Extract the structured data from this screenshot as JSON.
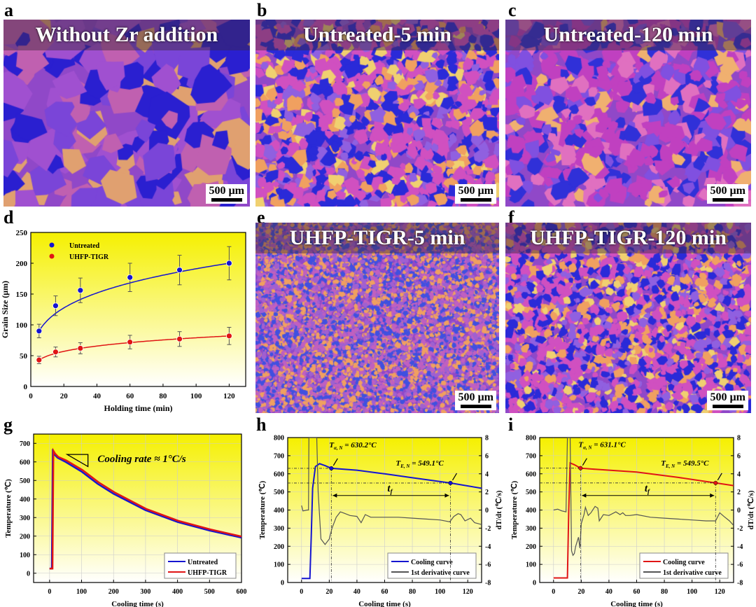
{
  "panels": {
    "a": {
      "label": "a",
      "title": "Without Zr addition",
      "scale": "500 µm"
    },
    "b": {
      "label": "b",
      "title": "Untreated-5 min",
      "scale": "500 µm"
    },
    "c": {
      "label": "c",
      "title": "Untreated-120 min",
      "scale": "500 µm"
    },
    "d": {
      "label": "d"
    },
    "e": {
      "label": "e",
      "title": "UHFP-TIGR-5 min",
      "scale": "500 µm"
    },
    "f": {
      "label": "f",
      "title": "UHFP-TIGR-120 min",
      "scale": "500 µm"
    },
    "g": {
      "label": "g"
    },
    "h": {
      "label": "h"
    },
    "i": {
      "label": "i"
    }
  },
  "colors": {
    "untreated": "#1515d0",
    "uhfp": "#e01515",
    "derivative": "#555555",
    "plot_bg_top": "#f5f000",
    "plot_bg_bottom": "#ffffff"
  },
  "chart_data": [
    {
      "id": "d",
      "type": "scatter",
      "xlabel": "Holding time (min)",
      "ylabel": "Grain Size (μm)",
      "xlim": [
        0,
        130
      ],
      "ylim": [
        0,
        250
      ],
      "xticks": [
        "0",
        "20",
        "40",
        "60",
        "80",
        "100",
        "120"
      ],
      "yticks": [
        "0",
        "50",
        "100",
        "150",
        "200",
        "250"
      ],
      "legend_position": "top-left",
      "series": [
        {
          "name": "Untreated",
          "color": "#1515d0",
          "x": [
            5,
            15,
            30,
            60,
            90,
            120
          ],
          "y": [
            90,
            131,
            156,
            177,
            189,
            200
          ],
          "err": [
            11,
            16,
            20,
            23,
            24,
            27
          ]
        },
        {
          "name": "UHFP-TIGR",
          "color": "#e01515",
          "x": [
            5,
            15,
            30,
            60,
            90,
            120
          ],
          "y": [
            43,
            56,
            62,
            72,
            77,
            82
          ],
          "err": [
            6,
            8,
            9,
            11,
            12,
            14
          ]
        }
      ]
    },
    {
      "id": "g",
      "type": "line",
      "xlabel": "Cooling time (s)",
      "ylabel": "Temperature (℃)",
      "xlim": [
        -50,
        600
      ],
      "ylim": [
        -50,
        750
      ],
      "xticks": [
        "0",
        "100",
        "200",
        "300",
        "400",
        "500",
        "600"
      ],
      "yticks": [
        "0",
        "100",
        "200",
        "300",
        "400",
        "500",
        "600",
        "700"
      ],
      "annotation": "Cooling rate ≈ 1°C/s",
      "legend_position": "bottom-right",
      "series": [
        {
          "name": "Untreated",
          "color": "#1515d0",
          "x": [
            0,
            7,
            10,
            15,
            25,
            50,
            100,
            150,
            200,
            300,
            400,
            500,
            600
          ],
          "y": [
            25,
            25,
            655,
            640,
            622,
            600,
            548,
            482,
            428,
            340,
            276,
            230,
            192
          ]
        },
        {
          "name": "UHFP-TIGR",
          "color": "#e01515",
          "x": [
            0,
            9,
            12,
            17,
            27,
            52,
            103,
            153,
            203,
            303,
            403,
            503,
            600
          ],
          "y": [
            25,
            25,
            660,
            645,
            627,
            608,
            556,
            490,
            436,
            346,
            282,
            236,
            198
          ]
        }
      ]
    },
    {
      "id": "h",
      "type": "line",
      "xlabel": "Cooling time (s)",
      "ylabel": "Temperature (℃)",
      "y2label": "dT/dt (℃/s)",
      "xlim": [
        -10,
        130
      ],
      "ylim": [
        0,
        800
      ],
      "y2lim": [
        -8,
        8
      ],
      "xticks": [
        "0",
        "20",
        "40",
        "60",
        "80",
        "100",
        "120"
      ],
      "yticks": [
        "0",
        "100",
        "200",
        "300",
        "400",
        "500",
        "600",
        "700",
        "800"
      ],
      "y2ticks": [
        "-8",
        "-6",
        "-4",
        "-2",
        "0",
        "2",
        "4",
        "6",
        "8"
      ],
      "legend_position": "bottom-right",
      "markers": {
        "nucleation": {
          "symbol": "T",
          "sub": "α, N",
          "text": " = 630.2°C",
          "x": 21.5,
          "y": 630.2
        },
        "eutectic": {
          "symbol": "T",
          "sub": "E, N",
          "text": " = 549.1°C",
          "x": 107.5,
          "y": 549.1
        },
        "interval": {
          "symbol": "t",
          "sub": "f"
        }
      },
      "series": [
        {
          "name": "Cooling curve",
          "color": "#1515d0",
          "axis": "left",
          "x": [
            0,
            6,
            7,
            8,
            10,
            13,
            17,
            21.5,
            40,
            60,
            80,
            107.5,
            130
          ],
          "y": [
            22,
            22,
            250,
            520,
            640,
            656,
            645,
            630.2,
            620,
            600,
            578,
            549.1,
            520
          ]
        },
        {
          "name": "1st derivative curve",
          "color": "#555555",
          "axis": "right",
          "x": [
            0,
            1,
            4,
            5,
            5.3,
            11,
            12,
            14,
            17,
            20,
            22,
            25,
            28,
            30,
            35,
            40,
            43,
            46,
            50,
            60,
            70,
            80,
            90,
            100,
            107,
            110,
            113,
            115,
            118,
            122,
            125,
            130
          ],
          "y": [
            0.5,
            -0.1,
            0,
            0,
            8,
            8,
            2,
            -3.2,
            -3.8,
            -3.2,
            -2,
            -0.8,
            -0.2,
            -0.3,
            -0.6,
            -0.7,
            -1.4,
            -0.5,
            -0.8,
            -0.8,
            -0.8,
            -0.9,
            -1.0,
            -1.1,
            -1.3,
            -0.7,
            -0.4,
            -0.5,
            -1.2,
            -0.9,
            -1.4,
            -1.6
          ]
        }
      ]
    },
    {
      "id": "i",
      "type": "line",
      "xlabel": "Cooling time (s)",
      "ylabel": "Temperature (℃)",
      "y2label": "dT/dt (℃/s)",
      "xlim": [
        -10,
        130
      ],
      "ylim": [
        0,
        800
      ],
      "y2lim": [
        -8,
        8
      ],
      "xticks": [
        "0",
        "20",
        "40",
        "60",
        "80",
        "100",
        "120"
      ],
      "yticks": [
        "0",
        "100",
        "200",
        "300",
        "400",
        "500",
        "600",
        "700",
        "800"
      ],
      "y2ticks": [
        "-8",
        "-6",
        "-4",
        "-2",
        "0",
        "2",
        "4",
        "6",
        "8"
      ],
      "legend_position": "bottom-right",
      "markers": {
        "nucleation": {
          "symbol": "T",
          "sub": "α, N",
          "text": " = 631.1°C",
          "x": 19.5,
          "y": 631.1
        },
        "eutectic": {
          "symbol": "T",
          "sub": "E, N",
          "text": " = 549.5°C",
          "x": 117,
          "y": 549.5
        },
        "interval": {
          "symbol": "t",
          "sub": "f"
        }
      },
      "series": [
        {
          "name": "Cooling curve",
          "color": "#e01515",
          "axis": "left",
          "x": [
            0,
            10,
            11,
            12,
            15,
            19.5,
            30,
            60,
            90,
            117,
            130
          ],
          "y": [
            25,
            25,
            400,
            660,
            650,
            631.1,
            625,
            610,
            580,
            549.5,
            535
          ]
        },
        {
          "name": "1st derivative curve",
          "color": "#555555",
          "axis": "right",
          "x": [
            0,
            3,
            6,
            9,
            10,
            12,
            13,
            14,
            15,
            16,
            18,
            19,
            20,
            22,
            23,
            25,
            27,
            30,
            32,
            33,
            36,
            40,
            45,
            48,
            50,
            52,
            55,
            60,
            70,
            80,
            90,
            100,
            110,
            117,
            120,
            123,
            127,
            130
          ],
          "y": [
            0,
            0.1,
            -0.1,
            -0.2,
            8,
            8,
            -4.5,
            -5,
            -4.8,
            -4,
            -3,
            -4.2,
            -1.5,
            -0.5,
            0.3,
            -0.6,
            -0.3,
            0.4,
            0.2,
            -1.2,
            -0.5,
            -0.6,
            -0.2,
            -0.5,
            -0.3,
            -0.6,
            -0.6,
            -0.5,
            -0.8,
            -0.9,
            -1.0,
            -1.1,
            -1.2,
            -1.2,
            -0.3,
            -0.7,
            -1.2,
            -1.7
          ]
        }
      ]
    }
  ]
}
